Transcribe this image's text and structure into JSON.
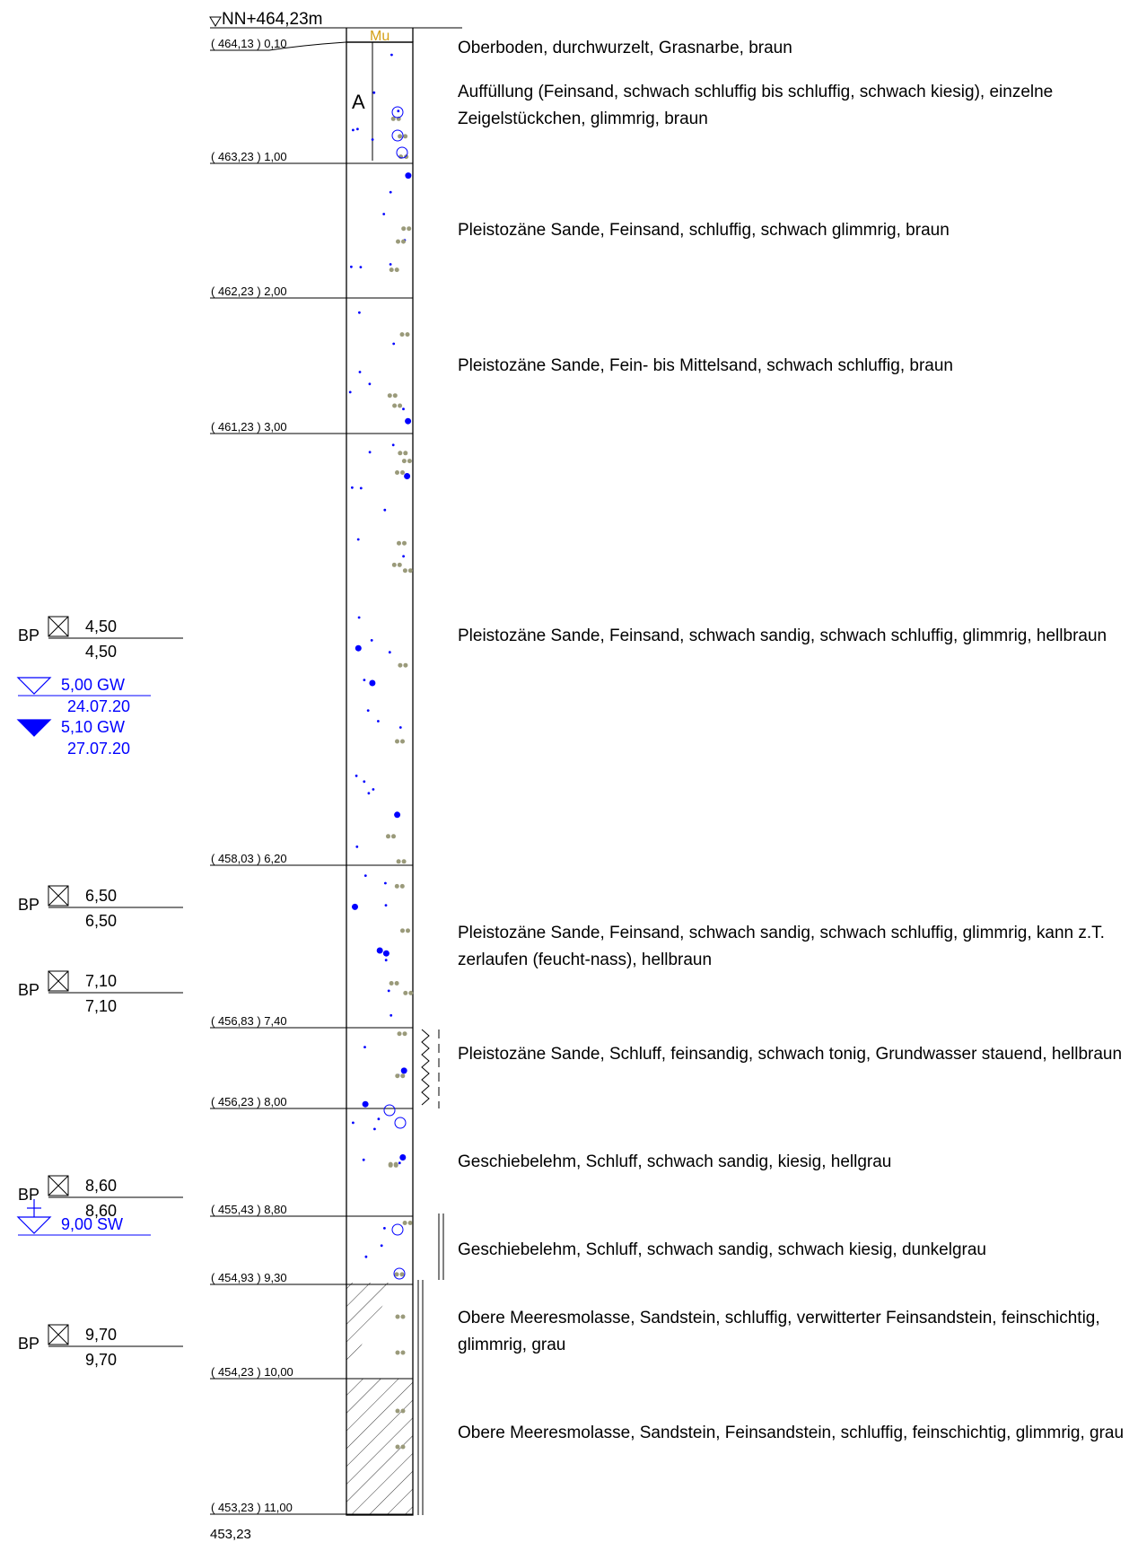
{
  "header": {
    "elevation_label": "NN+464,23m",
    "bottom_elevation": "453,23"
  },
  "legend": {
    "fill_letter": "A",
    "topsoil_abbrev": "Mu"
  },
  "colors": {
    "water": "#0000ff",
    "gravel": "#9a9a7a",
    "topsoil": "#d4a017",
    "line": "#000000",
    "rock_hatch": "#000000"
  },
  "layers": [
    {
      "depth_label": "( 464,13 ) 0,10",
      "depth": 0.1,
      "description": "Oberboden, durchwurzelt, Grasnarbe, braun"
    },
    {
      "depth_label": "( 463,23 ) 1,00",
      "depth": 1.0,
      "description": "Auffüllung (Feinsand, schwach schluffig bis schluffig, schwach kiesig), einzelne Zeigelstückchen, glimmrig, braun"
    },
    {
      "depth_label": "( 462,23 ) 2,00",
      "depth": 2.0,
      "description": "Pleistozäne Sande, Feinsand, schluffig, schwach glimmrig, braun"
    },
    {
      "depth_label": "( 461,23 ) 3,00",
      "depth": 3.0,
      "description": "Pleistozäne Sande, Fein- bis Mittelsand, schwach schluffig, braun"
    },
    {
      "depth_label": "( 458,03 ) 6,20",
      "depth": 6.2,
      "description": "Pleistozäne Sande, Feinsand, schwach sandig, schwach schluffig, glimmrig, hellbraun"
    },
    {
      "depth_label": "( 456,83 ) 7,40",
      "depth": 7.4,
      "description": "Pleistozäne Sande, Feinsand, schwach sandig, schwach schluffig, glimmrig, kann z.T. zerlaufen (feucht-nass), hellbraun"
    },
    {
      "depth_label": "( 456,23 ) 8,00",
      "depth": 8.0,
      "description": "Pleistozäne Sande, Schluff, feinsandig, schwach tonig, Grundwasser stauend, hellbraun"
    },
    {
      "depth_label": "( 455,43 ) 8,80",
      "depth": 8.8,
      "description": "Geschiebelehm, Schluff, schwach sandig, kiesig, hellgrau"
    },
    {
      "depth_label": "( 454,93 ) 9,30",
      "depth": 9.3,
      "description": "Geschiebelehm, Schluff, schwach sandig, schwach kiesig, dunkelgrau"
    },
    {
      "depth_label": "( 454,23 ) 10,00",
      "depth": 10.0,
      "description": "Obere Meeresmolasse, Sandstein, schluffig, verwitterter Feinsandstein, feinschichtig, glimmrig, grau"
    },
    {
      "depth_label": "( 453,23 ) 11,00",
      "depth": 11.0,
      "description": "Obere Meeresmolasse, Sandstein, Feinsandstein, schluffig, feinschichtig, glimmrig, grau"
    }
  ],
  "samples": [
    {
      "prefix": "BP",
      "top": "4,50",
      "bottom": "4,50"
    },
    {
      "prefix": "BP",
      "top": "6,50",
      "bottom": "6,50"
    },
    {
      "prefix": "BP",
      "top": "7,10",
      "bottom": "7,10"
    },
    {
      "prefix": "BP",
      "top": "8,60",
      "bottom": "8,60"
    },
    {
      "prefix": "BP",
      "top": "9,70",
      "bottom": "9,70"
    }
  ],
  "groundwater": [
    {
      "label": "5,00 GW",
      "date": "24.07.20"
    },
    {
      "label": "5,10 GW",
      "date": "27.07.20"
    },
    {
      "label": "9,00 SW",
      "date": ""
    }
  ]
}
